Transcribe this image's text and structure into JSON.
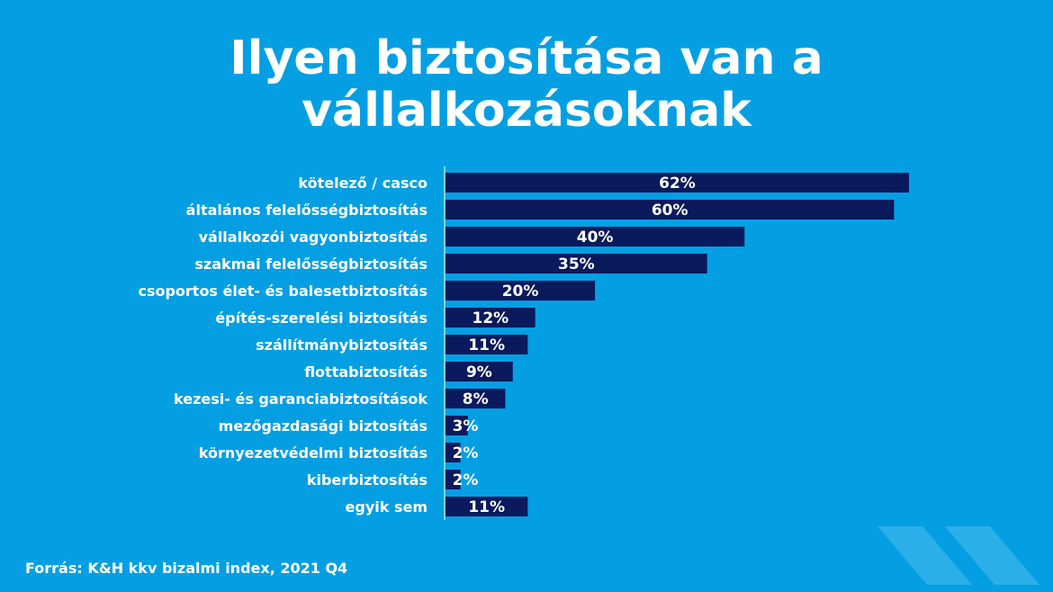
{
  "title_lines": [
    "Ilyen biztosítása van a",
    "vállalkozásoknak"
  ],
  "source": "Forrás: K&H kkv bizalmi index, 2021 Q4",
  "colors": {
    "background": "#049fe3",
    "bar": "#0b1a5c",
    "text": "#ffffff",
    "decor": "#35b3ea"
  },
  "chart_data": {
    "type": "bar",
    "orientation": "horizontal",
    "title": "Ilyen biztosítása van a vállalkozásoknak",
    "categories": [
      "kötelező / casco",
      "általános felelősségbiztosítás",
      "vállalkozói vagyonbiztosítás",
      "szakmai felelősségbiztosítás",
      "csoportos élet- és balesetbiztosítás",
      "építés-szerelési biztosítás",
      "szállítmánybiztosítás",
      "flottabiztosítás",
      "kezesi- és garanciabiztosítások",
      "mezőgazdasági biztosítás",
      "környezetvédelmi biztosítás",
      "kiberbiztosítás",
      "egyik sem"
    ],
    "values": [
      62,
      60,
      40,
      35,
      20,
      12,
      11,
      9,
      8,
      3,
      2,
      2,
      11
    ],
    "value_labels": [
      "62%",
      "60%",
      "40%",
      "35%",
      "20%",
      "12%",
      "11%",
      "9%",
      "8%",
      "3%",
      "2%",
      "2%",
      "11%"
    ],
    "unit": "%",
    "xlim": [
      0,
      62
    ],
    "grid": false,
    "legend": "none"
  }
}
